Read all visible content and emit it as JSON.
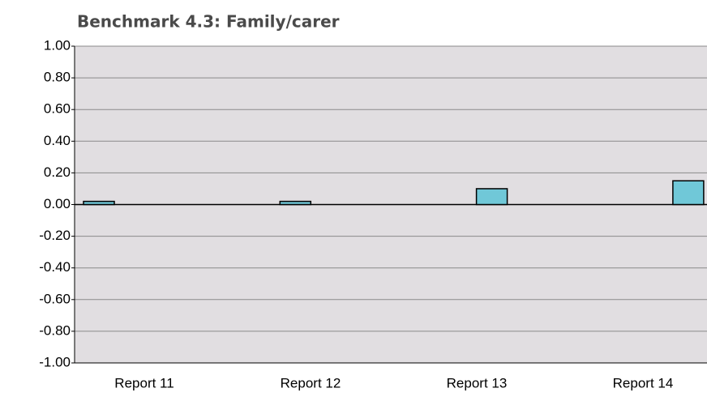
{
  "chart_data": {
    "type": "bar",
    "title": "Benchmark 4.3:  Family/carer",
    "categories": [
      "Report 11",
      "Report 12",
      "Report 13",
      "Report 14"
    ],
    "values": [
      0.02,
      0.02,
      0.1,
      0.15
    ],
    "color": "#70c8d8",
    "ylim": [
      -1,
      1
    ],
    "yticks": [
      {
        "value": -1,
        "label": "-1.00"
      },
      {
        "value": -0.8,
        "label": "-0.80"
      },
      {
        "value": -0.6,
        "label": "-0.60"
      },
      {
        "value": -0.4,
        "label": "-0.40"
      },
      {
        "value": -0.2,
        "label": "-0.20"
      },
      {
        "value": 0,
        "label": "0.00"
      },
      {
        "value": 0.2,
        "label": "0.20"
      },
      {
        "value": 0.4,
        "label": "0.40"
      },
      {
        "value": 0.6,
        "label": "0.60"
      },
      {
        "value": 0.8,
        "label": "0.80"
      },
      {
        "value": 1,
        "label": "1.00"
      }
    ],
    "grid": true
  }
}
